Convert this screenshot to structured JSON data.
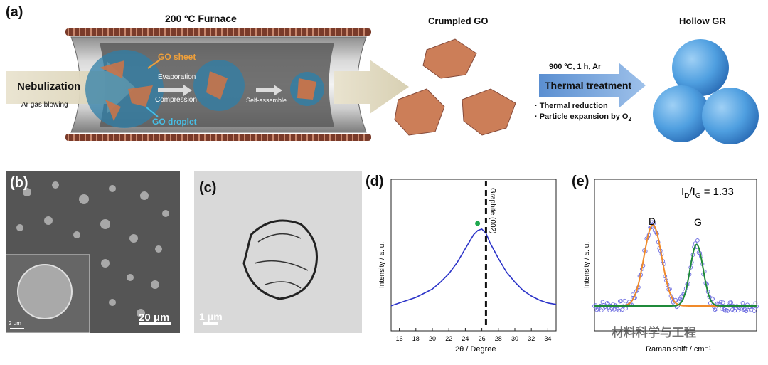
{
  "panel_a": {
    "label": "(a)",
    "furnace_title": "200 ºC Furnace",
    "nebulization": "Nebulization",
    "ar_gas": "Ar gas blowing",
    "go_sheet": "GO sheet",
    "evaporation": "Evaporation",
    "compression": "Compression",
    "self_assemble": "Self-assemble",
    "go_droplet": "GO droplet",
    "crumpled_go": "Crumpled GO",
    "hollow_gr": "Hollow GR",
    "conditions": "900 ºC, 1 h, Ar",
    "thermal_treatment": "Thermal treatment",
    "note1": "· Thermal reduction",
    "note2_prefix": "· Particle expansion by O",
    "note2_sub": "2"
  },
  "panel_b": {
    "label": "(b)",
    "scale_main": "20 μm",
    "scale_inset": "2 μm"
  },
  "panel_c": {
    "label": "(c)",
    "scale": "1 μm"
  },
  "panel_d": {
    "label": "(d)",
    "ylabel": "Intensity / a. u.",
    "xlabel": "2θ / Degree",
    "peak_label": "Graphite (002)"
  },
  "panel_e": {
    "label": "(e)",
    "ylabel": "Intensity / a. u.",
    "xlabel": "Raman shift / cm⁻¹",
    "ratio_prefix": "I",
    "ratio_sub1": "D",
    "ratio_mid": "/I",
    "ratio_sub2": "G",
    "ratio_value": " = 1.33",
    "peak_d": "D",
    "peak_g": "G"
  },
  "watermark": "材料科学与工程",
  "colors": {
    "arrow_blue": "#5b8fd1",
    "xrd_line": "#2b33c8",
    "raman_fit_d": "#f08a2a",
    "raman_fit_g": "#1f8a3a",
    "raman_points": "#6b6be0",
    "copper": "#c8744a",
    "hollow_blue": "#4f9fe0"
  },
  "chart_data": [
    {
      "type": "line",
      "title": "",
      "xlabel": "2θ / Degree",
      "ylabel": "Intensity / a. u.",
      "xlim": [
        15,
        35
      ],
      "xticks": [
        16,
        18,
        20,
        22,
        24,
        26,
        28,
        30,
        32,
        34
      ],
      "series": [
        {
          "x": [
            15,
            16,
            17,
            18,
            19,
            20,
            21,
            22,
            23,
            24,
            24.5,
            25,
            25.5,
            26,
            26.5,
            27,
            28,
            29,
            30,
            31,
            32,
            33,
            34,
            35
          ],
          "y": [
            0.18,
            0.2,
            0.22,
            0.24,
            0.27,
            0.3,
            0.35,
            0.41,
            0.49,
            0.59,
            0.64,
            0.69,
            0.72,
            0.73,
            0.7,
            0.63,
            0.52,
            0.42,
            0.35,
            0.29,
            0.25,
            0.22,
            0.2,
            0.19
          ]
        }
      ],
      "annotations": [
        "Graphite (002)"
      ],
      "reference_line_x": 26.5
    },
    {
      "type": "line",
      "title": "",
      "xlabel": "Raman shift / cm⁻¹",
      "ylabel": "Intensity / a. u.",
      "annotations": [
        "D",
        "G"
      ],
      "ratio_text": "ID/IG = 1.33",
      "peaks": [
        {
          "name": "D",
          "relative_height": 0.95
        },
        {
          "name": "G",
          "relative_height": 0.72
        }
      ]
    }
  ]
}
